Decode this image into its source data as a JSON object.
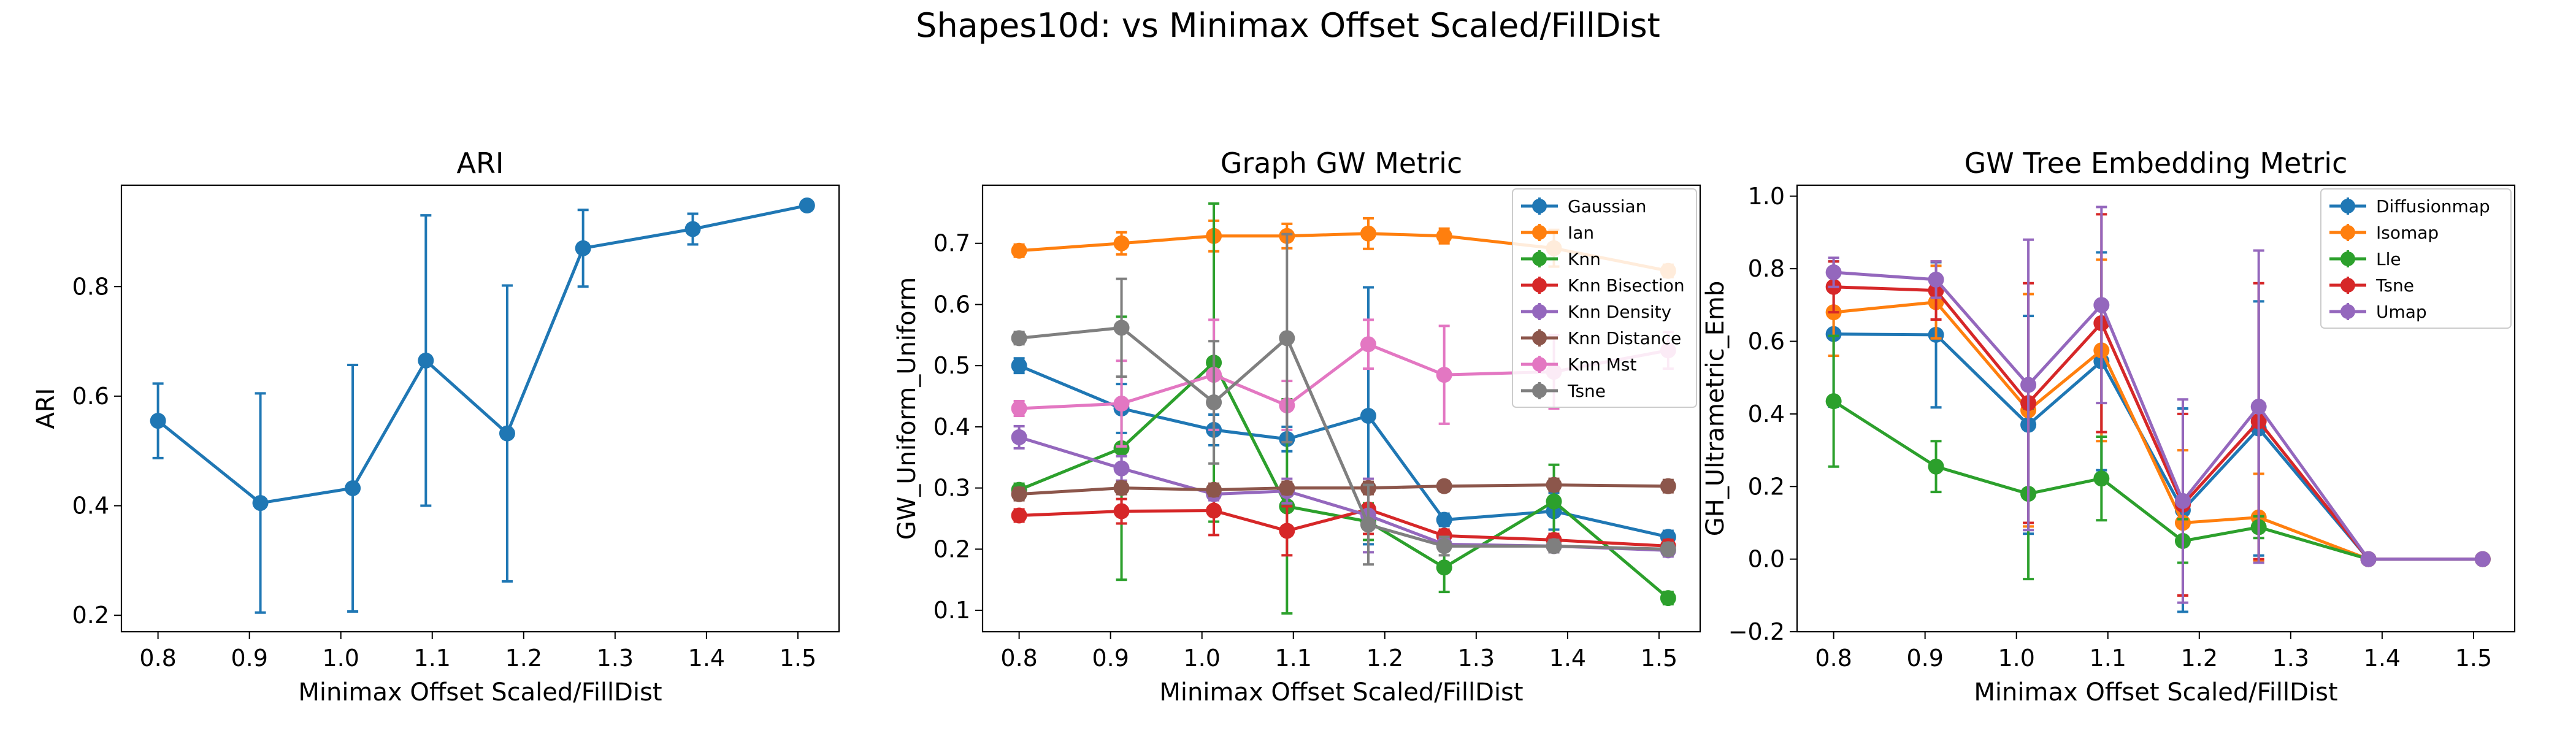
{
  "figure": {
    "title": "Shapes10d: vs Minimax Offset Scaled/FillDist"
  },
  "palette": [
    "#1f77b4",
    "#ff7f0e",
    "#2ca02c",
    "#d62728",
    "#9467bd",
    "#8c564b",
    "#e377c2",
    "#7f7f7f"
  ],
  "chart_data": [
    {
      "type": "line",
      "title": "ARI",
      "xlabel": "Minimax Offset Scaled/FillDist",
      "ylabel": "ARI",
      "xlim": [
        0.76,
        1.545
      ],
      "ylim": [
        0.17,
        0.985
      ],
      "xticks": [
        0.8,
        0.9,
        1.0,
        1.1,
        1.2,
        1.3,
        1.4,
        1.5
      ],
      "xtick_labels": [
        "0.8",
        "0.9",
        "1.0",
        "1.1",
        "1.2",
        "1.3",
        "1.4",
        "1.5"
      ],
      "yticks": [
        0.2,
        0.4,
        0.6,
        0.8
      ],
      "ytick_labels": [
        "0.2",
        "0.4",
        "0.6",
        "0.8"
      ],
      "grid": false,
      "legend": null,
      "x": [
        0.8,
        0.912,
        1.013,
        1.093,
        1.182,
        1.265,
        1.385,
        1.51
      ],
      "series": [
        {
          "name": "",
          "values": [
            0.555,
            0.405,
            0.432,
            0.665,
            0.532,
            0.87,
            0.905,
            0.948
          ],
          "err": [
            0.068,
            0.2,
            0.225,
            0.265,
            0.27,
            0.07,
            0.028,
            0.005
          ]
        }
      ]
    },
    {
      "type": "line",
      "title": "Graph GW Metric",
      "xlabel": "Minimax Offset Scaled/FillDist",
      "ylabel": "GW_Uniform_Uniform",
      "xlim": [
        0.76,
        1.545
      ],
      "ylim": [
        0.065,
        0.795
      ],
      "xticks": [
        0.8,
        0.9,
        1.0,
        1.1,
        1.2,
        1.3,
        1.4,
        1.5
      ],
      "xtick_labels": [
        "0.8",
        "0.9",
        "1.0",
        "1.1",
        "1.2",
        "1.3",
        "1.4",
        "1.5"
      ],
      "yticks": [
        0.1,
        0.2,
        0.3,
        0.4,
        0.5,
        0.6,
        0.7
      ],
      "ytick_labels": [
        "0.1",
        "0.2",
        "0.3",
        "0.4",
        "0.5",
        "0.6",
        "0.7"
      ],
      "grid": false,
      "legend": "top-right",
      "x": [
        0.8,
        0.912,
        1.013,
        1.093,
        1.182,
        1.265,
        1.385,
        1.51
      ],
      "series": [
        {
          "name": "Gaussian",
          "values": [
            0.5,
            0.43,
            0.395,
            0.38,
            0.418,
            0.248,
            0.262,
            0.22
          ],
          "err": [
            0.012,
            0.04,
            0.025,
            0.02,
            0.21,
            0.01,
            0.03,
            0.01
          ]
        },
        {
          "name": "Ian",
          "values": [
            0.688,
            0.7,
            0.712,
            0.712,
            0.716,
            0.712,
            0.692,
            0.655
          ],
          "err": [
            0.01,
            0.018,
            0.025,
            0.02,
            0.025,
            0.012,
            0.03,
            0.01
          ]
        },
        {
          "name": "Knn",
          "values": [
            0.297,
            0.365,
            0.505,
            0.27,
            0.245,
            0.17,
            0.278,
            0.12
          ],
          "err": [
            0.01,
            0.215,
            0.26,
            0.175,
            0.03,
            0.04,
            0.06,
            0.01
          ]
        },
        {
          "name": "Knn Bisection",
          "values": [
            0.255,
            0.262,
            0.263,
            0.23,
            0.265,
            0.222,
            0.215,
            0.205
          ],
          "err": [
            0.01,
            0.02,
            0.04,
            0.04,
            0.04,
            0.01,
            0.01,
            0.01
          ]
        },
        {
          "name": "Knn Density",
          "values": [
            0.383,
            0.332,
            0.29,
            0.295,
            0.255,
            0.208,
            0.205,
            0.198
          ],
          "err": [
            0.018,
            0.02,
            0.01,
            0.02,
            0.06,
            0.01,
            0.01,
            0.01
          ]
        },
        {
          "name": "Knn Distance",
          "values": [
            0.29,
            0.3,
            0.297,
            0.3,
            0.3,
            0.303,
            0.305,
            0.303
          ],
          "err": [
            0.01,
            0.01,
            0.01,
            0.01,
            0.01,
            0.008,
            0.01,
            0.01
          ]
        },
        {
          "name": "Knn Mst",
          "values": [
            0.43,
            0.438,
            0.485,
            0.435,
            0.535,
            0.485,
            0.49,
            0.525
          ],
          "err": [
            0.012,
            0.07,
            0.09,
            0.04,
            0.04,
            0.08,
            0.06,
            0.03
          ]
        },
        {
          "name": "Tsne",
          "values": [
            0.545,
            0.562,
            0.44,
            0.545,
            0.24,
            0.205,
            0.205,
            0.2
          ],
          "err": [
            0.01,
            0.08,
            0.1,
            0.17,
            0.065,
            0.015,
            0.01,
            0.01
          ]
        }
      ]
    },
    {
      "type": "line",
      "title": "GW Tree Embedding Metric",
      "xlabel": "Minimax Offset Scaled/FillDist",
      "ylabel": "GH_Ultrametric_Emb",
      "xlim": [
        0.76,
        1.545
      ],
      "ylim": [
        -0.2,
        1.03
      ],
      "xticks": [
        0.8,
        0.9,
        1.0,
        1.1,
        1.2,
        1.3,
        1.4,
        1.5
      ],
      "xtick_labels": [
        "0.8",
        "0.9",
        "1.0",
        "1.1",
        "1.2",
        "1.3",
        "1.4",
        "1.5"
      ],
      "yticks": [
        -0.2,
        0.0,
        0.2,
        0.4,
        0.6,
        0.8,
        1.0
      ],
      "ytick_labels": [
        "−0.2",
        "0.0",
        "0.2",
        "0.4",
        "0.6",
        "0.8",
        "1.0"
      ],
      "grid": false,
      "legend": "top-right",
      "x": [
        0.8,
        0.912,
        1.013,
        1.093,
        1.182,
        1.265,
        1.385,
        1.51
      ],
      "series": [
        {
          "name": "Diffusionmap",
          "values": [
            0.62,
            0.618,
            0.37,
            0.545,
            0.135,
            0.36,
            0.0,
            0.0
          ],
          "err": [
            0.2,
            0.2,
            0.3,
            0.3,
            0.28,
            0.35,
            0.01,
            0.005
          ]
        },
        {
          "name": "Isomap",
          "values": [
            0.68,
            0.708,
            0.41,
            0.575,
            0.1,
            0.115,
            0.0,
            0.0
          ],
          "err": [
            0.12,
            0.1,
            0.32,
            0.25,
            0.2,
            0.12,
            0.01,
            0.005
          ]
        },
        {
          "name": "Lle",
          "values": [
            0.435,
            0.255,
            0.18,
            0.222,
            0.05,
            0.088,
            0.0,
            0.0
          ],
          "err": [
            0.18,
            0.07,
            0.235,
            0.115,
            0.06,
            0.03,
            0.01,
            0.005
          ]
        },
        {
          "name": "Tsne",
          "values": [
            0.75,
            0.74,
            0.43,
            0.65,
            0.15,
            0.38,
            0.0,
            0.0
          ],
          "err": [
            0.07,
            0.08,
            0.33,
            0.3,
            0.25,
            0.38,
            0.01,
            0.005
          ]
        },
        {
          "name": "Umap",
          "values": [
            0.79,
            0.77,
            0.48,
            0.7,
            0.16,
            0.42,
            0.0,
            0.0
          ],
          "err": [
            0.04,
            0.05,
            0.4,
            0.27,
            0.28,
            0.43,
            0.01,
            0.005
          ]
        }
      ]
    }
  ]
}
